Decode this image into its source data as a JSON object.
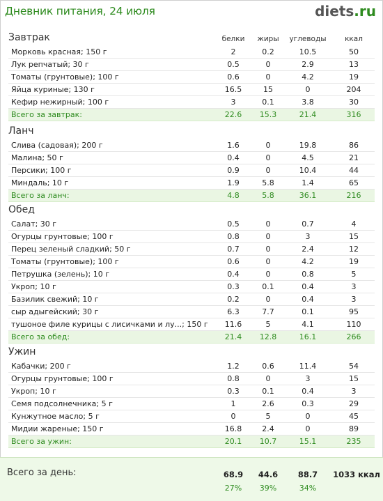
{
  "header": {
    "title": "Дневник питания, 24 июля",
    "logo_main": "diets",
    "logo_dot": ".",
    "logo_tld": "ru"
  },
  "columns": {
    "protein": "белки",
    "fat": "жиры",
    "carbs": "углеводы",
    "kcal": "ккал"
  },
  "sections": [
    {
      "title": "Завтрак",
      "items": [
        [
          "Морковь красная; 150 г",
          "2",
          "0.2",
          "10.5",
          "50"
        ],
        [
          "Лук репчатый; 30 г",
          "0.5",
          "0",
          "2.9",
          "13"
        ],
        [
          "Томаты (грунтовые); 100 г",
          "0.6",
          "0",
          "4.2",
          "19"
        ],
        [
          "Яйца куриные; 130 г",
          "16.5",
          "15",
          "0",
          "204"
        ],
        [
          "Кефир нежирный; 100 г",
          "3",
          "0.1",
          "3.8",
          "30"
        ]
      ],
      "total": [
        "Всего за завтрак:",
        "22.6",
        "15.3",
        "21.4",
        "316"
      ]
    },
    {
      "title": "Ланч",
      "items": [
        [
          "Слива (садовая); 200 г",
          "1.6",
          "0",
          "19.8",
          "86"
        ],
        [
          "Малина; 50 г",
          "0.4",
          "0",
          "4.5",
          "21"
        ],
        [
          "Персики; 100 г",
          "0.9",
          "0",
          "10.4",
          "44"
        ],
        [
          "Миндаль; 10 г",
          "1.9",
          "5.8",
          "1.4",
          "65"
        ]
      ],
      "total": [
        "Всего за ланч:",
        "4.8",
        "5.8",
        "36.1",
        "216"
      ]
    },
    {
      "title": "Обед",
      "items": [
        [
          "Салат; 30 г",
          "0.5",
          "0",
          "0.7",
          "4"
        ],
        [
          "Огурцы грунтовые; 100 г",
          "0.8",
          "0",
          "3",
          "15"
        ],
        [
          "Перец зеленый сладкий; 50 г",
          "0.7",
          "0",
          "2.4",
          "12"
        ],
        [
          "Томаты (грунтовые); 100 г",
          "0.6",
          "0",
          "4.2",
          "19"
        ],
        [
          "Петрушка (зелень); 10 г",
          "0.4",
          "0",
          "0.8",
          "5"
        ],
        [
          "Укроп; 10 г",
          "0.3",
          "0.1",
          "0.4",
          "3"
        ],
        [
          "Базилик свежий; 10 г",
          "0.2",
          "0",
          "0.4",
          "3"
        ],
        [
          "сыр адыгейский; 30 г",
          "6.3",
          "7.7",
          "0.1",
          "95"
        ],
        [
          "тушоное филе курицы с лисичками и лу...; 150 г",
          "11.6",
          "5",
          "4.1",
          "110"
        ]
      ],
      "total": [
        "Всего за обед:",
        "21.4",
        "12.8",
        "16.1",
        "266"
      ]
    },
    {
      "title": "Ужин",
      "items": [
        [
          "Кабачки; 200 г",
          "1.2",
          "0.6",
          "11.4",
          "54"
        ],
        [
          "Огурцы грунтовые; 100 г",
          "0.8",
          "0",
          "3",
          "15"
        ],
        [
          "Укроп; 10 г",
          "0.3",
          "0.1",
          "0.4",
          "3"
        ],
        [
          "Семя подсолнечника; 5 г",
          "1",
          "2.6",
          "0.3",
          "29"
        ],
        [
          "Кунжутное масло; 5 г",
          "0",
          "5",
          "0",
          "45"
        ],
        [
          "Мидии жареные; 150 г",
          "16.8",
          "2.4",
          "0",
          "89"
        ]
      ],
      "total": [
        "Всего за ужин:",
        "20.1",
        "10.7",
        "15.1",
        "235"
      ]
    }
  ],
  "day_total": {
    "label": "Всего за день:",
    "protein": "68.9",
    "fat": "44.6",
    "carbs": "88.7",
    "kcal": "1033 ккал",
    "protein_pct": "27%",
    "fat_pct": "39%",
    "carbs_pct": "34%"
  }
}
